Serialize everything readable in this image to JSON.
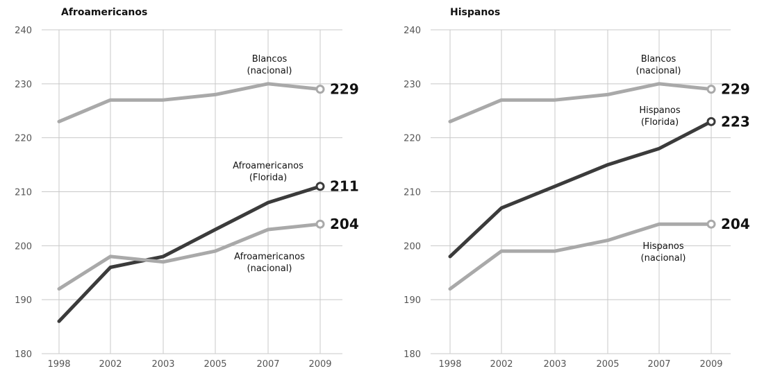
{
  "colors": {
    "light": "#a9a9a9",
    "dark": "#3b3b3b",
    "grid": "#c8c8c8"
  },
  "chart_data": [
    {
      "type": "line",
      "title": "Afroamericanos",
      "categories": [
        "1998",
        "2002",
        "2003",
        "2005",
        "2007",
        "2009"
      ],
      "ylim": [
        180,
        240
      ],
      "yticks": [
        180,
        190,
        200,
        210,
        220,
        230,
        240
      ],
      "grid": true,
      "series": [
        {
          "name": "Blancos (nacional)",
          "label_lines": [
            "Blancos",
            "(nacional)"
          ],
          "color": "#a9a9a9",
          "values": [
            223,
            227,
            227,
            228,
            230,
            229
          ],
          "end_label": "229"
        },
        {
          "name": "Afroamericanos (Florida)",
          "label_lines": [
            "Afroamericanos",
            "(Florida)"
          ],
          "color": "#3b3b3b",
          "values": [
            186,
            196,
            198,
            203,
            208,
            211
          ],
          "end_label": "211"
        },
        {
          "name": "Afroamericanos (nacional)",
          "label_lines": [
            "Afroamericanos",
            "(nacional)"
          ],
          "color": "#a9a9a9",
          "values": [
            192,
            198,
            197,
            199,
            203,
            204
          ],
          "end_label": "204"
        }
      ]
    },
    {
      "type": "line",
      "title": "Hispanos",
      "categories": [
        "1998",
        "2002",
        "2003",
        "2005",
        "2007",
        "2009"
      ],
      "ylim": [
        180,
        240
      ],
      "yticks": [
        180,
        190,
        200,
        210,
        220,
        230,
        240
      ],
      "grid": true,
      "series": [
        {
          "name": "Blancos (nacional)",
          "label_lines": [
            "Blancos",
            "(nacional)"
          ],
          "color": "#a9a9a9",
          "values": [
            223,
            227,
            227,
            228,
            230,
            229
          ],
          "end_label": "229"
        },
        {
          "name": "Hispanos (Florida)",
          "label_lines": [
            "Hispanos",
            "(Florida)"
          ],
          "color": "#3b3b3b",
          "values": [
            198,
            207,
            211,
            215,
            218,
            223
          ],
          "end_label": "223"
        },
        {
          "name": "Hispanos (nacional)",
          "label_lines": [
            "Hispanos",
            "(nacional)"
          ],
          "color": "#a9a9a9",
          "values": [
            192,
            199,
            199,
            201,
            204,
            204
          ],
          "end_label": "204"
        }
      ]
    }
  ]
}
